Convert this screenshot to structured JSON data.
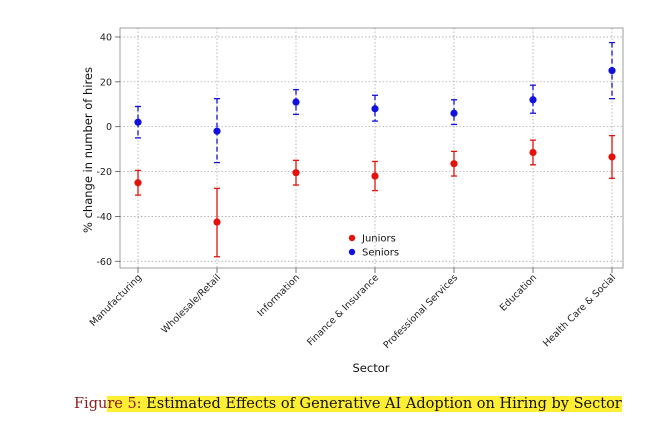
{
  "chart_data": {
    "type": "scatter",
    "subtype": "point-estimates-with-error-bars",
    "xlabel": "Sector",
    "ylabel": "% change in number of hires",
    "ylim": [
      -63,
      44
    ],
    "yticks": [
      -60,
      -40,
      -20,
      0,
      20,
      40
    ],
    "ytick_labels": [
      "-60",
      "-40",
      "-20",
      "0",
      "20",
      "40"
    ],
    "grid": "dotted",
    "legend_position": "bottom-center",
    "categories": [
      "Manufacturing",
      "Wholesale/Retail",
      "Information",
      "Finance & Insurance",
      "Professional Services",
      "Education",
      "Health Care & Social"
    ],
    "series": [
      {
        "name": "Juniors",
        "color": "#e3120b",
        "line_style": "solid",
        "values": [
          -25,
          -42.5,
          -20.5,
          -22,
          -16.5,
          -11.5,
          -13.5
        ],
        "lower": [
          -30.5,
          -58,
          -26,
          -28.5,
          -22,
          -17,
          -23
        ],
        "upper": [
          -19.5,
          -27.5,
          -15,
          -15.5,
          -11,
          -6,
          -4
        ]
      },
      {
        "name": "Seniors",
        "color": "#1111dd",
        "line_style": "dashed",
        "values": [
          2,
          -2,
          11,
          8,
          6,
          12,
          25
        ],
        "lower": [
          -5,
          -16,
          5.5,
          2.5,
          1,
          6,
          12.5
        ],
        "upper": [
          9,
          12.5,
          16.5,
          14,
          12,
          18.5,
          37.5
        ]
      }
    ]
  },
  "caption": {
    "lead": "Figu",
    "highlight_start": "r",
    "label": "e 5:",
    "text": " Estimated Effects of Generative AI Adoption on Hiring by Sector"
  }
}
